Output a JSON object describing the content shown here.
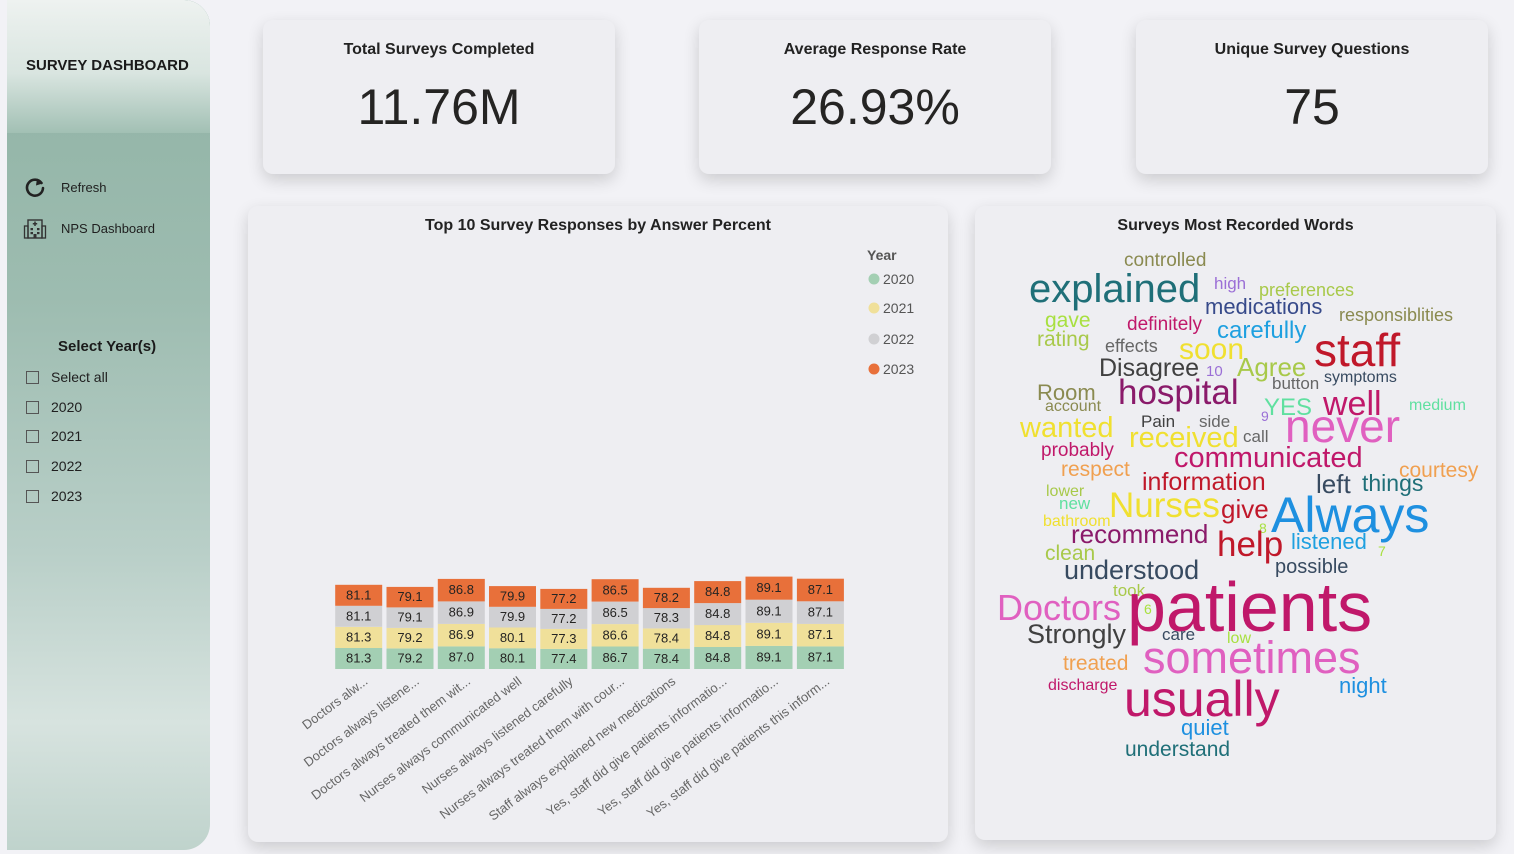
{
  "sidebar": {
    "title": "SURVEY DASHBOARD",
    "buttons": [
      {
        "label": "Refresh",
        "icon": "refresh-icon"
      },
      {
        "label": "NPS Dashboard",
        "icon": "hospital-building-icon"
      }
    ],
    "slicer": {
      "title": "Select Year(s)",
      "options": [
        "Select all",
        "2020",
        "2021",
        "2022",
        "2023"
      ]
    }
  },
  "kpis": [
    {
      "title": "Total Surveys Completed",
      "value": "11.76M"
    },
    {
      "title": "Average Response Rate",
      "value": "26.93%"
    },
    {
      "title": "Unique Survey Questions",
      "value": "75"
    }
  ],
  "chart_data": {
    "type": "bar",
    "stacked": true,
    "title": "Top 10 Survey Responses by Answer Percent",
    "legend_title": "Year",
    "legend_position": "right",
    "categories": [
      "Doctors alw...",
      "Doctors always listene...",
      "Doctors always treated them wit...",
      "Nurses always communicated well",
      "Nurses always listened carefully",
      "Nurses always treated them with cour...",
      "Staff always explained new medications",
      "Yes, staff did give patients informatio...",
      "Yes, staff did give patients informatio...",
      "Yes, staff did give patients this inform..."
    ],
    "series": [
      {
        "name": "2020",
        "color": "#a3cfb3",
        "values": [
          81.3,
          79.2,
          87.0,
          80.1,
          77.4,
          86.7,
          78.4,
          84.8,
          89.1,
          87.1
        ]
      },
      {
        "name": "2021",
        "color": "#f0e09a",
        "values": [
          81.3,
          79.2,
          86.9,
          80.1,
          77.3,
          86.6,
          78.4,
          84.8,
          89.1,
          87.1
        ]
      },
      {
        "name": "2022",
        "color": "#d0d0d3",
        "values": [
          81.1,
          79.1,
          86.9,
          79.9,
          77.2,
          86.5,
          78.3,
          84.8,
          89.1,
          87.1
        ]
      },
      {
        "name": "2023",
        "color": "#e8703a",
        "values": [
          81.1,
          79.1,
          86.8,
          79.9,
          77.2,
          86.5,
          78.2,
          84.8,
          89.1,
          87.1
        ]
      }
    ]
  },
  "word_cloud": {
    "title": "Surveys Most Recorded Words",
    "words": [
      {
        "text": "controlled",
        "color": "#8a8a50"
      },
      {
        "text": "explained",
        "color": "#1f6f78"
      },
      {
        "text": "high",
        "color": "#9b6fd6"
      },
      {
        "text": "preferences",
        "color": "#a8c94a"
      },
      {
        "text": "medications",
        "color": "#374a8a"
      },
      {
        "text": "responsiblities",
        "color": "#8a8a50"
      },
      {
        "text": "gave",
        "color": "#a8e040"
      },
      {
        "text": "definitely",
        "color": "#c0186a"
      },
      {
        "text": "carefully",
        "color": "#1ea0e0"
      },
      {
        "text": "rating",
        "color": "#a8c94a"
      },
      {
        "text": "effects",
        "color": "#666666"
      },
      {
        "text": "soon",
        "color": "#f0e030"
      },
      {
        "text": "staff",
        "color": "#c0182a"
      },
      {
        "text": "Disagree",
        "color": "#404040"
      },
      {
        "text": "10",
        "color": "#9b6fd6"
      },
      {
        "text": "Agree",
        "color": "#a8c94a"
      },
      {
        "text": "symptoms",
        "color": "#374a60"
      },
      {
        "text": "Room",
        "color": "#8a8a50"
      },
      {
        "text": "hospital",
        "color": "#8a1a6a"
      },
      {
        "text": "button",
        "color": "#666666"
      },
      {
        "text": "account",
        "color": "#8a8a50"
      },
      {
        "text": "YES",
        "color": "#60e0a0"
      },
      {
        "text": "well",
        "color": "#c0186a"
      },
      {
        "text": "medium",
        "color": "#60e0a0"
      },
      {
        "text": "Pain",
        "color": "#404040"
      },
      {
        "text": "side",
        "color": "#666666"
      },
      {
        "text": "9",
        "color": "#9b6fd6"
      },
      {
        "text": "wanted",
        "color": "#f0e030"
      },
      {
        "text": "received",
        "color": "#f0e030"
      },
      {
        "text": "call",
        "color": "#666666"
      },
      {
        "text": "never",
        "color": "#e060c0"
      },
      {
        "text": "probably",
        "color": "#c0186a"
      },
      {
        "text": "communicated",
        "color": "#c0186a"
      },
      {
        "text": "respect",
        "color": "#f0a050"
      },
      {
        "text": "information",
        "color": "#c0182a"
      },
      {
        "text": "courtesy",
        "color": "#f0a050"
      },
      {
        "text": "lower",
        "color": "#a8c94a"
      },
      {
        "text": "left",
        "color": "#374a60"
      },
      {
        "text": "things",
        "color": "#1f6f78"
      },
      {
        "text": "new",
        "color": "#60e0a0"
      },
      {
        "text": "Nurses",
        "color": "#f0e030"
      },
      {
        "text": "give",
        "color": "#c0182a"
      },
      {
        "text": "Always",
        "color": "#1e90e0"
      },
      {
        "text": "bathroom",
        "color": "#f0e030"
      },
      {
        "text": "8",
        "color": "#a8e040"
      },
      {
        "text": "recommend",
        "color": "#8a1a6a"
      },
      {
        "text": "help",
        "color": "#c0182a"
      },
      {
        "text": "listened",
        "color": "#1ea0e0"
      },
      {
        "text": "clean",
        "color": "#a8c94a"
      },
      {
        "text": "7",
        "color": "#a8e040"
      },
      {
        "text": "understood",
        "color": "#374a60"
      },
      {
        "text": "possible",
        "color": "#374a60"
      },
      {
        "text": "took",
        "color": "#a8c94a"
      },
      {
        "text": "Doctors",
        "color": "#e060c0"
      },
      {
        "text": "6",
        "color": "#a8e040"
      },
      {
        "text": "patients",
        "color": "#c0186a"
      },
      {
        "text": "Strongly",
        "color": "#404040"
      },
      {
        "text": "care",
        "color": "#374a60"
      },
      {
        "text": "low",
        "color": "#a8e040"
      },
      {
        "text": "sometimes",
        "color": "#e060c0"
      },
      {
        "text": "treated",
        "color": "#f0a050"
      },
      {
        "text": "discharge",
        "color": "#c0186a"
      },
      {
        "text": "usually",
        "color": "#c0186a"
      },
      {
        "text": "night",
        "color": "#1e90e0"
      },
      {
        "text": "quiet",
        "color": "#1e90e0"
      },
      {
        "text": "understand",
        "color": "#1f6f78"
      }
    ]
  }
}
